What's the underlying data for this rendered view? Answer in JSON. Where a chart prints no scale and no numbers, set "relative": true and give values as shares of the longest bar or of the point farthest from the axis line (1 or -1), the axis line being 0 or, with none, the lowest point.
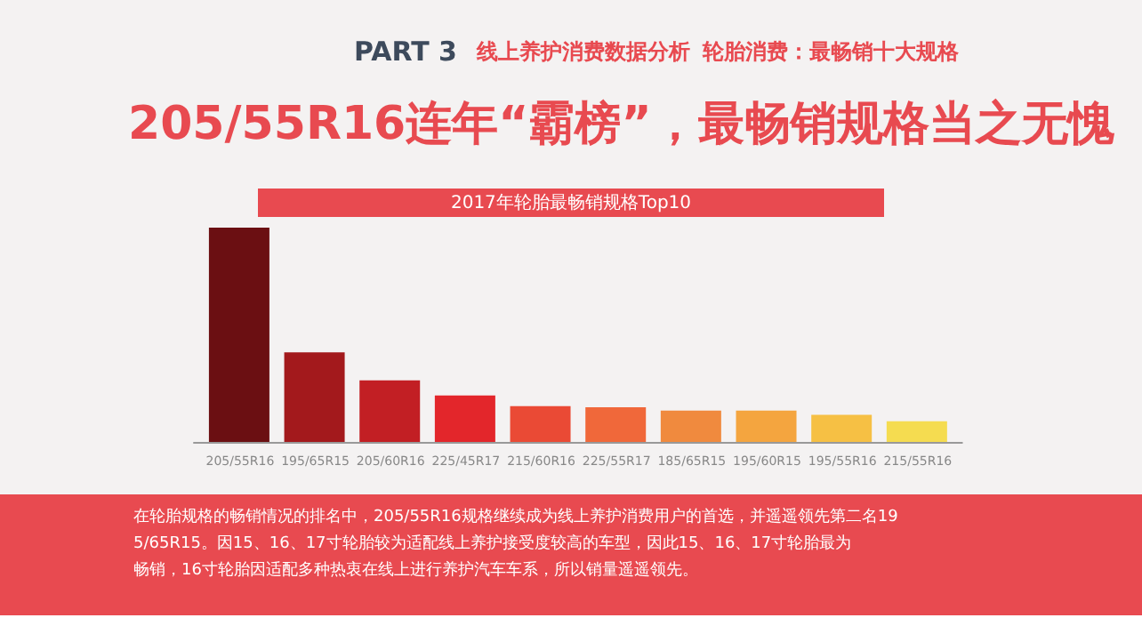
{
  "chart_data": {
    "type": "bar",
    "relative": true,
    "title": "205/55R16连年“霸榜”，最畅销规格当之无愧",
    "subtitle": "2017年轮胎最畅销规格Top10",
    "categories": [
      "205/55R16",
      "195/65R15",
      "205/60R16",
      "225/45R17",
      "215/60R16",
      "225/55R17",
      "185/65R15",
      "195/60R15",
      "195/55R16",
      "215/55R16"
    ],
    "values": [
      1,
      0.42,
      0.29,
      0.22,
      0.17,
      0.165,
      0.15,
      0.15,
      0.13,
      0.1
    ],
    "colors": [
      "#6b0f12",
      "#a3191c",
      "#c21f24",
      "#e3262b",
      "#ea4a35",
      "#f0683a",
      "#f08a3e",
      "#f4a53f",
      "#f6c044",
      "#f5dc50"
    ],
    "annotations": [
      "PART 3",
      "线上养护消费数据分析",
      "轮胎消费：最畅销十大规格",
      "在轮胎规格的畅销情况的排名中，205/55R16规格继续成为线上养护消费用户的首选，并遥遥领先第二名195/65R15。因15、16、17寸轮胎较为适配线上养护接受度较高的车型，因此15、16、17寸轮胎最为畅销，16寸轮胎因适配多种热衷在线上进行养护汽车车系，所以销量遥遥领先。"
    ],
    "grid": false,
    "legend": false
  }
}
